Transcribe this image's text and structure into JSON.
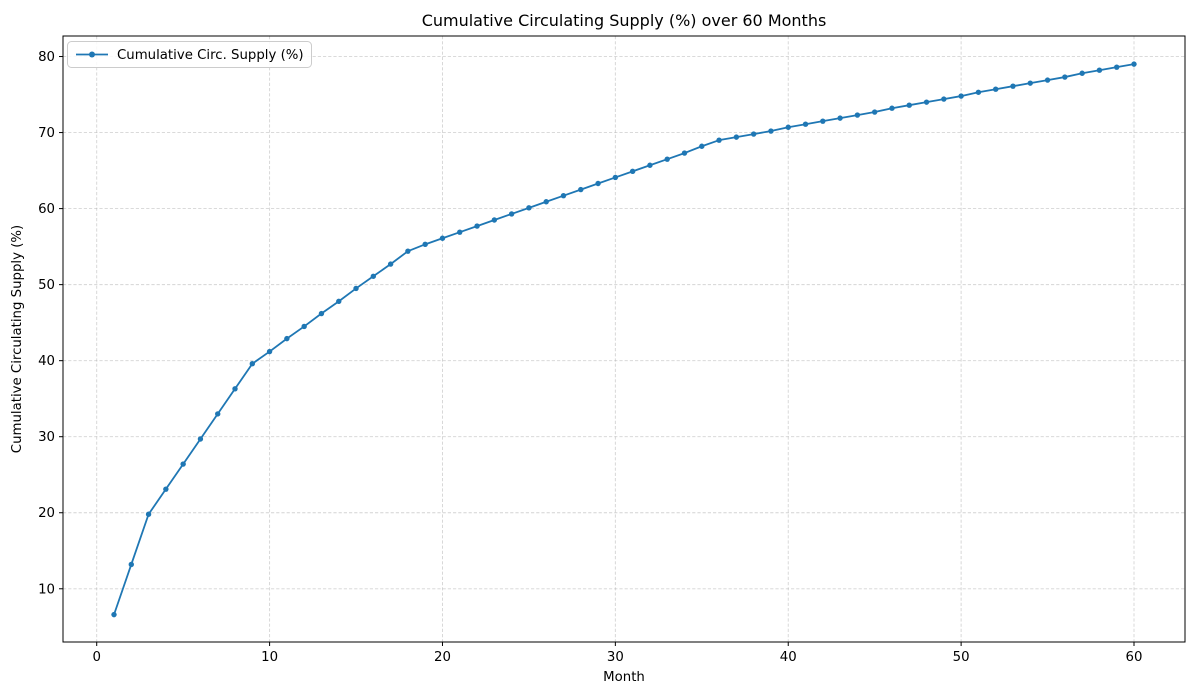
{
  "chart_data": {
    "type": "line",
    "title": "Cumulative Circulating Supply (%) over 60 Months",
    "xlabel": "Month",
    "ylabel": "Cumulative Circulating Supply (%)",
    "grid": true,
    "grid_style": "dashed",
    "legend": {
      "position": "upper left",
      "entries": [
        {
          "label": "Cumulative Circ. Supply (%)",
          "color": "#1f77b4",
          "marker": "circle"
        }
      ]
    },
    "axes": {
      "xlim": [
        -1.95,
        62.95
      ],
      "ylim": [
        3.0,
        82.7
      ],
      "xticks": [
        0,
        10,
        20,
        30,
        40,
        50,
        60
      ],
      "yticks": [
        10,
        20,
        30,
        40,
        50,
        60,
        70,
        80
      ]
    },
    "colors": {
      "line": "#1f77b4",
      "grid": "#b0b0b0",
      "spine": "#000000",
      "legend_border": "#cccccc",
      "background": "#ffffff"
    },
    "series": [
      {
        "name": "Cumulative Circ. Supply (%)",
        "color": "#1f77b4",
        "x": [
          1,
          2,
          3,
          4,
          5,
          6,
          7,
          8,
          9,
          10,
          11,
          12,
          13,
          14,
          15,
          16,
          17,
          18,
          19,
          20,
          21,
          22,
          23,
          24,
          25,
          26,
          27,
          28,
          29,
          30,
          31,
          32,
          33,
          34,
          35,
          36,
          37,
          38,
          39,
          40,
          41,
          42,
          43,
          44,
          45,
          46,
          47,
          48,
          49,
          50,
          51,
          52,
          53,
          54,
          55,
          56,
          57,
          58,
          59,
          60
        ],
        "y": [
          6.6,
          13.2,
          19.8,
          23.1,
          26.4,
          29.7,
          33.0,
          36.3,
          39.6,
          41.2,
          42.9,
          44.5,
          46.2,
          47.8,
          49.5,
          51.1,
          52.7,
          54.4,
          55.3,
          56.1,
          56.9,
          57.7,
          58.5,
          59.3,
          60.1,
          60.9,
          61.7,
          62.5,
          63.3,
          64.1,
          64.9,
          65.7,
          66.5,
          67.3,
          68.2,
          69.0,
          69.4,
          69.8,
          70.2,
          70.7,
          71.1,
          71.5,
          71.9,
          72.3,
          72.7,
          73.2,
          73.6,
          74.0,
          74.4,
          74.8,
          75.3,
          75.7,
          76.1,
          76.5,
          76.9,
          77.3,
          77.8,
          78.2,
          78.6,
          79.0
        ]
      }
    ]
  }
}
